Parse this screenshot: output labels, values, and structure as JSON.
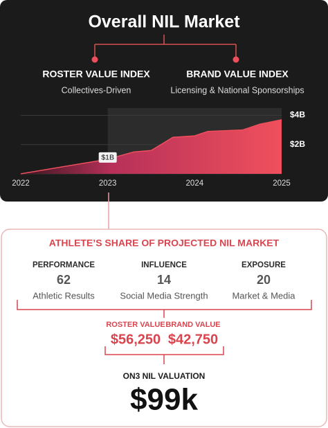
{
  "header": {
    "title": "Overall NIL Market",
    "indexes": [
      {
        "name": "ROSTER VALUE INDEX",
        "description": "Collectives-Driven"
      },
      {
        "name": "BRAND VALUE INDEX",
        "description": "Licensing & National Sponsorships"
      }
    ]
  },
  "chart_data": {
    "type": "area",
    "x": [
      2022,
      2023,
      2023.3,
      2023.5,
      2023.75,
      2024,
      2024.15,
      2024.55,
      2024.75,
      2025
    ],
    "values": [
      0,
      1,
      1.5,
      1.6,
      2.5,
      2.6,
      2.9,
      3.0,
      3.4,
      3.7
    ],
    "color": "#ef4f5c",
    "xlim": [
      2022,
      2025
    ],
    "xticks": [
      2022,
      2023,
      2024,
      2025
    ],
    "ylim": [
      0,
      4.5
    ],
    "yticks": [
      {
        "value": 2,
        "label": "$2B"
      },
      {
        "value": 4,
        "label": "$4B"
      }
    ],
    "grid": true,
    "highlight": [
      2023,
      2025
    ],
    "annotations": [
      {
        "text": "$1B",
        "x": 2023,
        "y": 1
      }
    ]
  },
  "share": {
    "title": "ATHLETE’S SHARE OF PROJECTED NIL MARKET",
    "factors": [
      {
        "label": "PERFORMANCE",
        "score": 62,
        "description": "Athletic Results"
      },
      {
        "label": "INFLUENCE",
        "score": 14,
        "description": "Social Media Strength"
      },
      {
        "label": "EXPOSURE",
        "score": 20,
        "description": "Market & Media"
      }
    ],
    "values": [
      {
        "label": "ROSTER VALUE",
        "value": "$56,250"
      },
      {
        "label": "BRAND VALUE",
        "value": "$42,750"
      }
    ]
  },
  "valuation": {
    "label": "ON3 NIL VALUATION",
    "value": "$99k"
  }
}
